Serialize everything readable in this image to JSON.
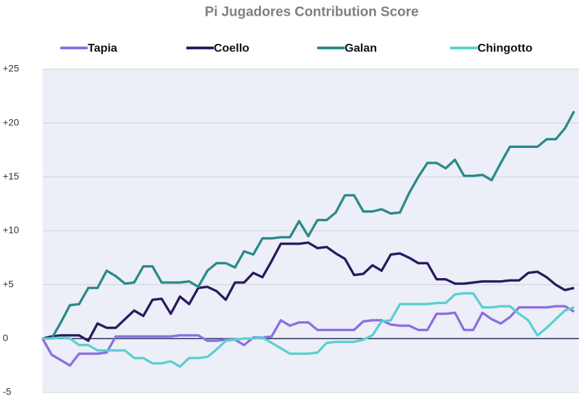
{
  "chart_data": {
    "type": "line",
    "title": "Pi Jugadores Contribution Score",
    "ylim": [
      -5,
      25
    ],
    "yticks": [
      -5,
      0,
      {
        "value": 5,
        "label": "+5"
      },
      {
        "value": 10,
        "label": "+10"
      },
      {
        "value": 15,
        "label": "+15"
      },
      {
        "value": 20,
        "label": "+20"
      },
      {
        "value": 25,
        "label": "+25"
      }
    ],
    "grid": true,
    "legend": "top",
    "series": [
      {
        "name": "Tapia",
        "color": "#8b6fe0",
        "values": [
          0,
          -1.5,
          -2.0,
          -2.5,
          -1.4,
          -1.4,
          -1.4,
          -1.3,
          0.2,
          0.2,
          0.2,
          0.2,
          0.2,
          0.2,
          0.2,
          0.3,
          0.3,
          0.3,
          -0.2,
          -0.2,
          -0.1,
          -0.1,
          -0.6,
          0.1,
          0.1,
          0.2,
          1.7,
          1.2,
          1.5,
          1.5,
          0.8,
          0.8,
          0.8,
          0.8,
          0.8,
          1.6,
          1.7,
          1.7,
          1.3,
          1.2,
          1.2,
          0.8,
          0.8,
          2.3,
          2.3,
          2.4,
          0.8,
          0.8,
          2.4,
          1.8,
          1.4,
          2.0,
          2.9,
          2.9,
          2.9,
          2.9,
          3.0,
          3.0,
          2.5
        ]
      },
      {
        "name": "Coello",
        "color": "#2a1a5e",
        "values": [
          0,
          0.2,
          0.3,
          0.3,
          0.3,
          -0.2,
          1.4,
          1.0,
          1.0,
          1.8,
          2.6,
          2.1,
          3.6,
          3.7,
          2.3,
          3.9,
          3.2,
          4.7,
          4.8,
          4.4,
          3.6,
          5.2,
          5.2,
          6.1,
          5.7,
          7.2,
          8.8,
          8.8,
          8.8,
          8.9,
          8.4,
          8.5,
          7.9,
          7.4,
          5.9,
          6.0,
          6.8,
          6.3,
          7.8,
          7.9,
          7.5,
          7.0,
          7.0,
          5.5,
          5.5,
          5.1,
          5.1,
          5.2,
          5.3,
          5.3,
          5.3,
          5.4,
          5.4,
          6.1,
          6.2,
          5.7,
          5.0,
          4.5,
          4.7
        ]
      },
      {
        "name": "Galan",
        "color": "#2a8a88",
        "values": [
          0,
          0,
          1.5,
          3.1,
          3.2,
          4.7,
          4.7,
          6.3,
          5.8,
          5.1,
          5.2,
          6.7,
          6.7,
          5.2,
          5.2,
          5.2,
          5.3,
          4.8,
          6.3,
          7.0,
          7.0,
          6.6,
          8.1,
          7.8,
          9.3,
          9.3,
          9.4,
          9.4,
          10.9,
          9.5,
          11.0,
          11.0,
          11.7,
          13.3,
          13.3,
          11.8,
          11.8,
          12.0,
          11.6,
          11.7,
          13.5,
          15.0,
          16.3,
          16.3,
          15.8,
          16.6,
          15.1,
          15.1,
          15.2,
          14.7,
          16.3,
          17.8,
          17.8,
          17.8,
          17.8,
          18.5,
          18.5,
          19.5,
          21.1
        ]
      },
      {
        "name": "Chingotto",
        "color": "#5ccfd0",
        "values": [
          0,
          0,
          0.1,
          0,
          -0.6,
          -0.6,
          -1.1,
          -1.1,
          -1.1,
          -1.1,
          -1.8,
          -1.8,
          -2.3,
          -2.3,
          -2.1,
          -2.6,
          -1.8,
          -1.8,
          -1.7,
          -1.0,
          -0.2,
          -0.1,
          0,
          0,
          0.1,
          -0.4,
          -0.9,
          -1.4,
          -1.4,
          -1.4,
          -1.3,
          -0.4,
          -0.3,
          -0.3,
          -0.3,
          -0.1,
          0.3,
          1.6,
          1.7,
          3.2,
          3.2,
          3.2,
          3.2,
          3.3,
          3.3,
          4.1,
          4.2,
          4.2,
          2.9,
          2.9,
          3.0,
          3.0,
          2.3,
          1.7,
          0.3,
          1.0,
          1.8,
          2.6,
          2.9
        ]
      }
    ]
  }
}
